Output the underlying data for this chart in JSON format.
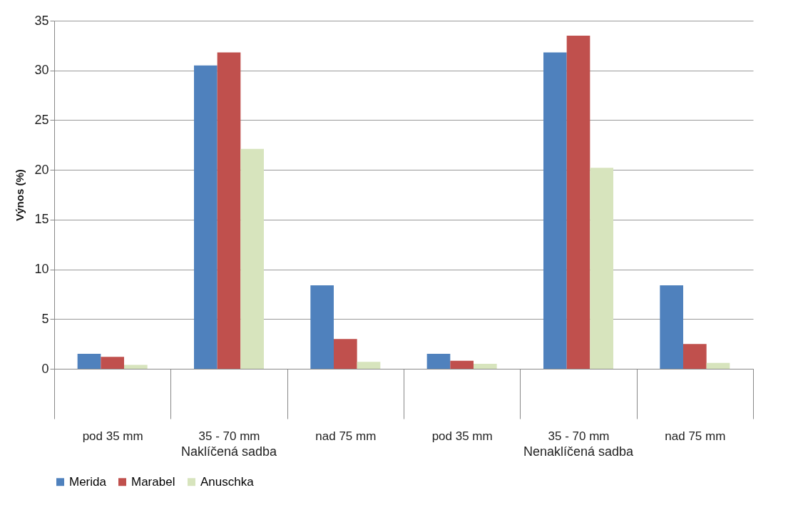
{
  "chart_data": {
    "type": "bar",
    "ylabel": "Výnos (%)",
    "categories": [
      "pod 35 mm",
      "35 - 70 mm",
      "nad 75 mm",
      "pod 35 mm",
      "35 - 70 mm",
      "nad 75 mm"
    ],
    "series": [
      {
        "name": "Merida",
        "color": "#4f81bd",
        "values": [
          1.5,
          30.5,
          8.4,
          1.5,
          31.8,
          8.4
        ]
      },
      {
        "name": "Marabel",
        "color": "#c0504d",
        "values": [
          1.2,
          31.8,
          3.0,
          0.8,
          33.5,
          2.5
        ]
      },
      {
        "name": "Anuschka",
        "color": "#d7e4bd",
        "values": [
          0.4,
          22.1,
          0.7,
          0.5,
          20.2,
          0.6
        ]
      }
    ],
    "annotations": [
      "Naklíčená sadba",
      "Nenaklíčená sadba"
    ],
    "ylim": [
      0,
      35
    ],
    "yticks": [
      0,
      5,
      10,
      15,
      20,
      25,
      30,
      35
    ],
    "grid": "y",
    "legend": "bottom"
  }
}
